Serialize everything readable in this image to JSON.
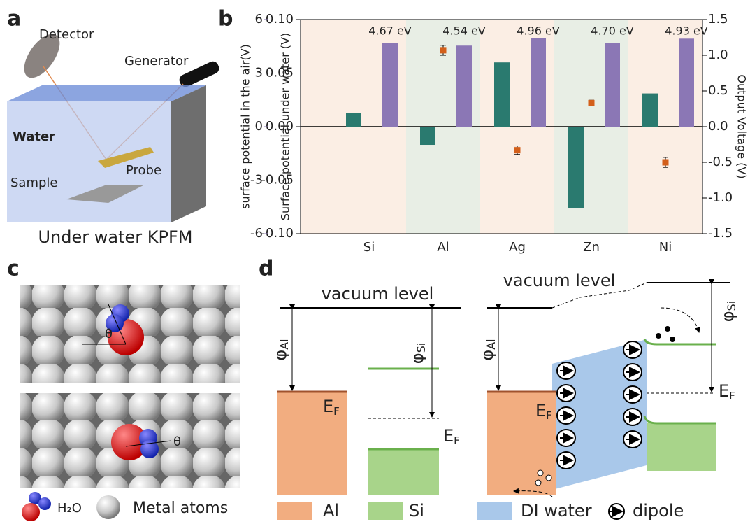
{
  "panel_labels": [
    "a",
    "b",
    "c",
    "d"
  ],
  "panel_a": {
    "detector": "Detector",
    "generator": "Generator",
    "water": "Water",
    "probe": "Probe",
    "sample": "Sample",
    "caption": "Under water KPFM"
  },
  "chart_data": {
    "type": "bar",
    "categories": [
      "Si",
      "Al",
      "Ag",
      "Zn",
      "Ni"
    ],
    "band_colors": [
      "#fbeee4",
      "#e8eee5"
    ],
    "series": [
      {
        "color": "#2a7a6f",
        "axis": "y",
        "values": [
          0.013,
          -0.017,
          0.06,
          -0.076,
          0.031
        ]
      },
      {
        "color": "#8b77b5",
        "axis": "y3",
        "values": [
          4.67,
          4.54,
          4.96,
          4.7,
          4.93
        ],
        "value_labels": [
          "4.67 eV",
          "4.54 eV",
          "4.96 eV",
          "4.70 eV",
          "4.93 eV"
        ]
      },
      {
        "type": "scatter",
        "color": "#d35f1a",
        "axis": "y2",
        "values": [
          null,
          1.07,
          -0.33,
          0.33,
          -0.5
        ],
        "errors": [
          null,
          0.07,
          0.06,
          0.04,
          0.07
        ]
      }
    ],
    "ylabel": "Surface potential under water (V)",
    "ylim": [
      -0.1,
      0.1
    ],
    "yticks": [
      {
        "value": -0.1,
        "label": "-0.10"
      },
      {
        "value": -0.05,
        "label": "-0.05"
      },
      {
        "value": 0,
        "label": "0.00"
      },
      {
        "value": 0.05,
        "label": "0.05"
      },
      {
        "value": 0.1,
        "label": "0.10"
      }
    ],
    "y3label": "surface potential in the air(V)",
    "y3lim": [
      -6,
      6
    ],
    "y3ticks": [
      -6,
      -3,
      0,
      3,
      6
    ],
    "y2label": "Output Voltage (V)",
    "y2lim": [
      -1.5,
      1.5
    ],
    "y2ticks": [
      -1.5,
      {
        "value": -1,
        "label": "-1.0"
      },
      -0.5,
      {
        "value": 0,
        "label": "0.0"
      },
      0.5,
      {
        "value": 1,
        "label": "1.0"
      },
      1.5
    ]
  },
  "panel_c": {
    "theta": "θ",
    "legend_h2o": "H₂O",
    "legend_metal": "Metal atoms"
  },
  "panel_d": {
    "vacuum_level": "vacuum level",
    "phi": "φ",
    "al": "Al",
    "si": "Si",
    "e": "E",
    "f": "F",
    "legend": [
      "Al",
      "Si",
      "DI water",
      "dipole"
    ]
  }
}
